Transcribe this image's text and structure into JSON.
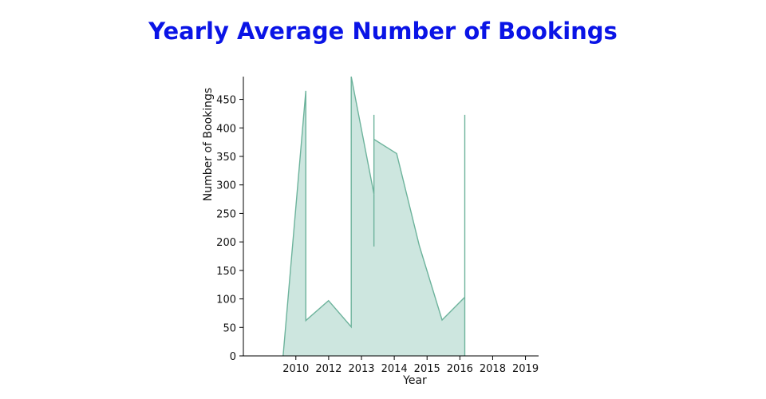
{
  "chart_data": {
    "type": "area",
    "title": "Yearly Average Number of Bookings",
    "xlabel": "Year",
    "ylabel": "Number of Bookings",
    "ylim": [
      0,
      490
    ],
    "xlim": [
      2008,
      2020
    ],
    "x_ticks": [
      2010,
      2012,
      2013,
      2014,
      2015,
      2016,
      2018,
      2019
    ],
    "y_ticks": [
      0,
      50,
      100,
      150,
      200,
      250,
      300,
      350,
      400,
      450
    ],
    "grid": false,
    "colors": {
      "fill": "#cde6df",
      "line": "#6db39c",
      "title": "#0a14e6"
    },
    "points": [
      {
        "x": 2009,
        "y": 0
      },
      {
        "x": 2010,
        "y": 465
      },
      {
        "x": 2010,
        "y": 62
      },
      {
        "x": 2011,
        "y": 97
      },
      {
        "x": 2012,
        "y": 51
      },
      {
        "x": 2012,
        "y": 490
      },
      {
        "x": 2013,
        "y": 284
      },
      {
        "x": 2013,
        "y": 423
      },
      {
        "x": 2013,
        "y": 192
      },
      {
        "x": 2013,
        "y": 380
      },
      {
        "x": 2014,
        "y": 355
      },
      {
        "x": 2015,
        "y": 193
      },
      {
        "x": 2016,
        "y": 63
      },
      {
        "x": 2017,
        "y": 103
      },
      {
        "x": 2017,
        "y": 423
      },
      {
        "x": 2017,
        "y": 0
      }
    ]
  }
}
